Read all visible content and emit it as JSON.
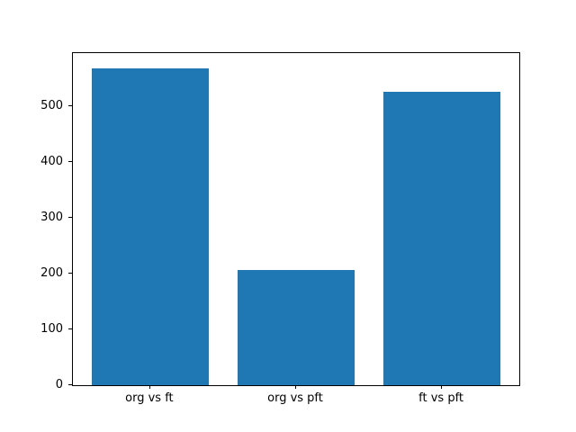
{
  "chart_data": {
    "type": "bar",
    "categories": [
      "org vs ft",
      "org vs pft",
      "ft vs pft"
    ],
    "values": [
      568,
      207,
      526
    ],
    "title": "",
    "xlabel": "",
    "ylabel": "",
    "xlim": [
      -0.53,
      2.53
    ],
    "ylim": [
      0,
      596
    ],
    "yticks": [
      0,
      100,
      200,
      300,
      400,
      500
    ],
    "bar_width": 0.8,
    "bar_color": "#1f77b4",
    "grid": false,
    "legend": "none",
    "background_color": "#ffffff",
    "axis_color": "#000000"
  }
}
